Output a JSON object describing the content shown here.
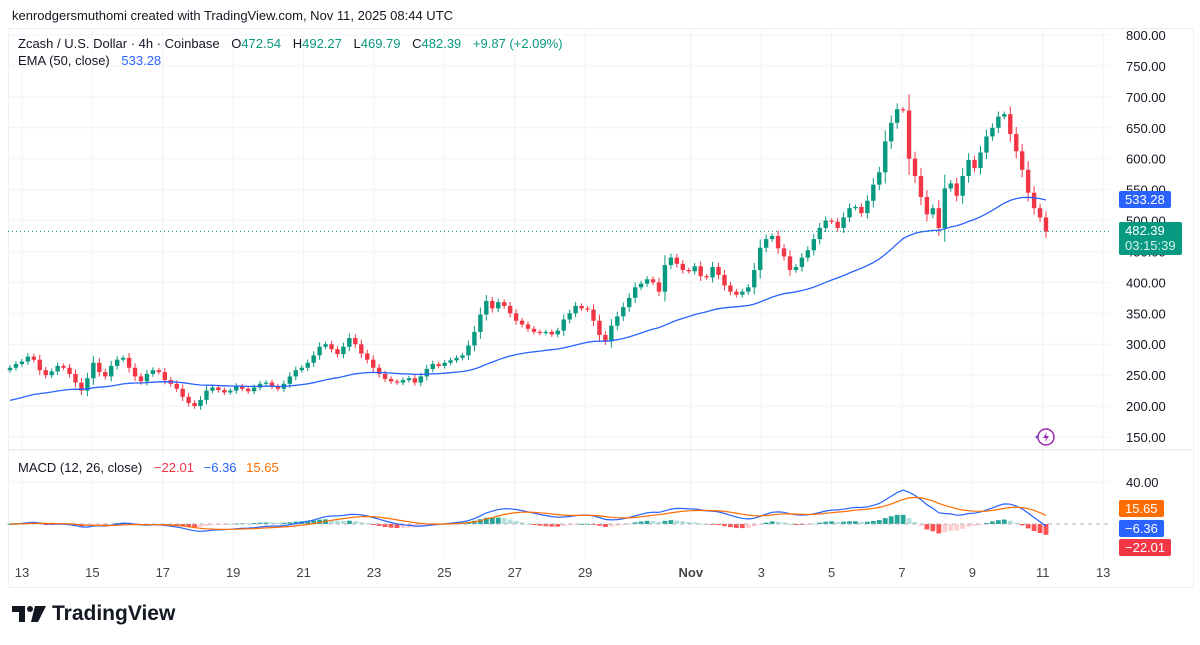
{
  "credit": "kenrodgersmuthomi created with TradingView.com, Nov 11, 2025 08:44 UTC",
  "symbol": {
    "title": "Zcash / U.S. Dollar · 4h · Coinbase",
    "o_label": "O",
    "o": "472.54",
    "h_label": "H",
    "h": "492.27",
    "l_label": "L",
    "l": "469.79",
    "c_label": "C",
    "c": "482.39",
    "change": "+9.87 (+2.09%)"
  },
  "ema": {
    "label": "EMA (50, close)",
    "value": "533.28"
  },
  "macd": {
    "label": "MACD (12, 26, close)",
    "hist": "−22.01",
    "macd": "−6.36",
    "signal": "15.65"
  },
  "price_tags": {
    "ema": "533.28",
    "last": "482.39",
    "countdown": "03:15:39"
  },
  "macd_tags": {
    "signal": "15.65",
    "macd": "−6.36",
    "hist": "−22.01"
  },
  "logo_text": "TradingView",
  "colors": {
    "up": "#089981",
    "down": "#f23645",
    "ema": "#2962ff",
    "macd": "#2962ff",
    "signal": "#ff6d00",
    "hist_up": "#26a69a",
    "hist_up_light": "#b2dfdb",
    "hist_down": "#ff5252",
    "hist_down_light": "#ffcdd2"
  },
  "chart_data": {
    "type": "candlestick",
    "title": "Zcash / U.S. Dollar · 4h · Coinbase",
    "y_ticks": [
      "800.00",
      "750.00",
      "700.00",
      "650.00",
      "600.00",
      "550.00",
      "500.00",
      "450.00",
      "400.00",
      "350.00",
      "300.00",
      "250.00",
      "200.00",
      "150.00"
    ],
    "ylim": [
      150,
      800
    ],
    "x_ticks": [
      "13",
      "15",
      "17",
      "19",
      "21",
      "23",
      "25",
      "27",
      "29",
      "Nov",
      "3",
      "5",
      "7",
      "9",
      "11",
      "13"
    ],
    "closes": [
      262,
      268,
      272,
      280,
      275,
      258,
      250,
      256,
      265,
      262,
      252,
      238,
      225,
      245,
      270,
      255,
      248,
      265,
      275,
      278,
      262,
      248,
      240,
      252,
      258,
      255,
      242,
      236,
      228,
      215,
      205,
      200,
      210,
      225,
      230,
      226,
      222,
      225,
      232,
      228,
      224,
      230,
      236,
      238,
      232,
      228,
      236,
      248,
      258,
      262,
      270,
      282,
      296,
      300,
      292,
      284,
      296,
      310,
      300,
      285,
      275,
      262,
      252,
      244,
      240,
      238,
      242,
      245,
      238,
      248,
      260,
      268,
      265,
      270,
      274,
      278,
      282,
      298,
      320,
      348,
      370,
      358,
      368,
      362,
      350,
      338,
      332,
      325,
      320,
      318,
      320,
      316,
      322,
      340,
      350,
      362,
      358,
      356,
      338,
      315,
      305,
      330,
      345,
      360,
      375,
      392,
      398,
      405,
      400,
      385,
      428,
      440,
      430,
      420,
      418,
      426,
      410,
      408,
      425,
      412,
      395,
      385,
      380,
      385,
      392,
      420,
      456,
      470,
      475,
      455,
      442,
      420,
      425,
      440,
      452,
      470,
      488,
      500,
      498,
      488,
      505,
      520,
      522,
      512,
      532,
      558,
      578,
      628,
      658,
      680,
      678,
      600,
      572,
      538,
      510,
      520,
      488,
      552,
      560,
      540,
      572,
      598,
      585,
      610,
      636,
      650,
      668,
      672,
      640,
      612,
      582,
      545,
      520,
      505,
      482
    ],
    "ema50_last": 533.28,
    "last_close": 482.39,
    "macd_panel": {
      "macd_last": -6.36,
      "signal_last": 15.65,
      "hist_last": -22.01,
      "y_ticks": [
        "40.00"
      ]
    }
  }
}
